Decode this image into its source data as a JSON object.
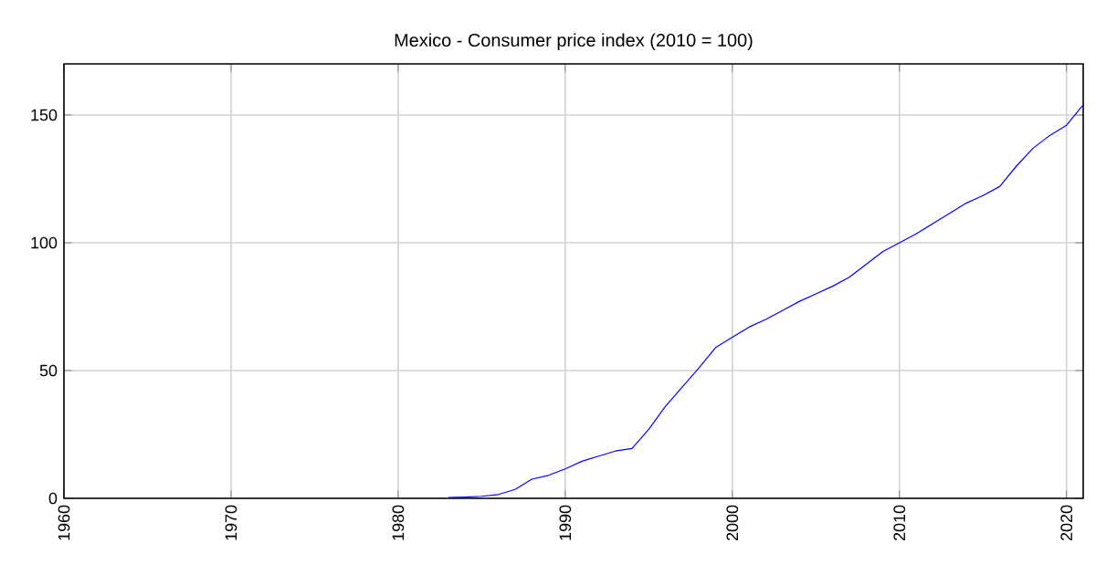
{
  "chart_data": {
    "type": "line",
    "title": "Mexico - Consumer price index (2010 = 100)",
    "x": [
      1983,
      1984,
      1985,
      1986,
      1987,
      1988,
      1989,
      1990,
      1991,
      1992,
      1993,
      1994,
      1995,
      1996,
      1997,
      1998,
      1999,
      2000,
      2001,
      2002,
      2003,
      2004,
      2005,
      2006,
      2007,
      2008,
      2009,
      2010,
      2011,
      2012,
      2013,
      2014,
      2015,
      2016,
      2017,
      2018,
      2019,
      2020,
      2021
    ],
    "series": [
      {
        "color": "#0000ff",
        "values": [
          0.3,
          0.5,
          0.8,
          1.5,
          3.5,
          7.5,
          9,
          11.5,
          14.5,
          16.5,
          18.5,
          19.5,
          27,
          36,
          43.5,
          51,
          59,
          63,
          67,
          70,
          73.5,
          77,
          80,
          83,
          86.5,
          91.5,
          96.5,
          100,
          103.5,
          107.5,
          111.5,
          115.5,
          118.5,
          122,
          130,
          137,
          142,
          146,
          154
        ]
      }
    ],
    "xlim": [
      1960,
      2021
    ],
    "ylim": [
      0,
      170
    ],
    "xticks": [
      1960,
      1970,
      1980,
      1990,
      2000,
      2010,
      2020
    ],
    "yticks": [
      0,
      50,
      100,
      150
    ],
    "grid": true
  }
}
